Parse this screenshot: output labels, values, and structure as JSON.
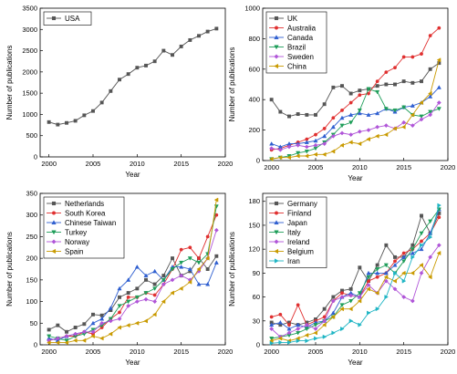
{
  "chart_data": [
    {
      "type": "line",
      "xlabel": "Year",
      "ylabel": "Number of publications",
      "xlim": [
        1999,
        2020
      ],
      "ylim": [
        0,
        3500
      ],
      "xticks": [
        2000,
        2005,
        2010,
        2015,
        2020
      ],
      "yticks": [
        0,
        500,
        1000,
        1500,
        2000,
        2500,
        3000,
        3500
      ],
      "legend_position": "top-left",
      "x": [
        2000,
        2001,
        2002,
        2003,
        2004,
        2005,
        2006,
        2007,
        2008,
        2009,
        2010,
        2011,
        2012,
        2013,
        2014,
        2015,
        2016,
        2017,
        2018,
        2019
      ],
      "series": [
        {
          "name": "USA",
          "color": "#555555",
          "marker": "square",
          "values": [
            820,
            760,
            800,
            850,
            980,
            1080,
            1280,
            1550,
            1820,
            1950,
            2100,
            2150,
            2250,
            2500,
            2400,
            2600,
            2750,
            2850,
            2950,
            3020
          ]
        }
      ]
    },
    {
      "type": "line",
      "xlabel": "Year",
      "ylabel": "Number of publications",
      "xlim": [
        1999,
        2020
      ],
      "ylim": [
        0,
        1000
      ],
      "xticks": [
        2000,
        2005,
        2010,
        2015,
        2020
      ],
      "yticks": [
        0,
        200,
        400,
        600,
        800,
        1000
      ],
      "legend_position": "top-left",
      "x": [
        2000,
        2001,
        2002,
        2003,
        2004,
        2005,
        2006,
        2007,
        2008,
        2009,
        2010,
        2011,
        2012,
        2013,
        2014,
        2015,
        2016,
        2017,
        2018,
        2019
      ],
      "series": [
        {
          "name": "UK",
          "color": "#555555",
          "marker": "square",
          "values": [
            400,
            320,
            290,
            305,
            300,
            300,
            370,
            480,
            490,
            440,
            460,
            470,
            490,
            500,
            500,
            520,
            510,
            520,
            600,
            640
          ]
        },
        {
          "name": "Australia",
          "color": "#e03030",
          "marker": "circle",
          "values": [
            70,
            80,
            100,
            120,
            140,
            170,
            210,
            280,
            330,
            380,
            430,
            440,
            520,
            580,
            610,
            680,
            680,
            700,
            820,
            870
          ]
        },
        {
          "name": "Canada",
          "color": "#2f5fd0",
          "marker": "triangle-up",
          "values": [
            110,
            90,
            110,
            110,
            120,
            130,
            160,
            220,
            280,
            300,
            310,
            300,
            310,
            340,
            320,
            350,
            360,
            380,
            420,
            480
          ]
        },
        {
          "name": "Brazil",
          "color": "#1f9e5a",
          "marker": "triangle-down",
          "values": [
            10,
            20,
            30,
            50,
            60,
            80,
            120,
            170,
            230,
            250,
            330,
            470,
            450,
            340,
            330,
            350,
            300,
            290,
            320,
            340
          ]
        },
        {
          "name": "Sweden",
          "color": "#b055d8",
          "marker": "diamond",
          "values": [
            80,
            70,
            90,
            100,
            90,
            100,
            110,
            160,
            180,
            170,
            190,
            200,
            220,
            230,
            210,
            250,
            230,
            270,
            300,
            380
          ]
        },
        {
          "name": "China",
          "color": "#c99a00",
          "marker": "triangle-left",
          "values": [
            10,
            20,
            20,
            30,
            30,
            40,
            40,
            60,
            100,
            120,
            110,
            140,
            160,
            170,
            210,
            220,
            300,
            380,
            440,
            660
          ]
        }
      ]
    },
    {
      "type": "line",
      "xlabel": "Year",
      "ylabel": "Number of publications",
      "xlim": [
        1999,
        2020
      ],
      "ylim": [
        0,
        350
      ],
      "xticks": [
        2000,
        2005,
        2010,
        2015,
        2020
      ],
      "yticks": [
        0,
        50,
        100,
        150,
        200,
        250,
        300,
        350
      ],
      "legend_position": "top-left",
      "x": [
        2000,
        2001,
        2002,
        2003,
        2004,
        2005,
        2006,
        2007,
        2008,
        2009,
        2010,
        2011,
        2012,
        2013,
        2014,
        2015,
        2016,
        2017,
        2018,
        2019
      ],
      "series": [
        {
          "name": "Netherlands",
          "color": "#555555",
          "marker": "square",
          "values": [
            35,
            45,
            30,
            40,
            48,
            70,
            68,
            80,
            110,
            120,
            130,
            150,
            140,
            160,
            200,
            160,
            170,
            200,
            175,
            205
          ]
        },
        {
          "name": "South Korea",
          "color": "#e03030",
          "marker": "circle",
          "values": [
            10,
            15,
            20,
            20,
            30,
            25,
            40,
            60,
            75,
            110,
            110,
            120,
            115,
            140,
            175,
            220,
            225,
            200,
            250,
            300
          ]
        },
        {
          "name": "Chinese Taiwan",
          "color": "#2f5fd0",
          "marker": "triangle-up",
          "values": [
            15,
            10,
            20,
            25,
            30,
            50,
            60,
            85,
            130,
            150,
            180,
            160,
            170,
            150,
            180,
            180,
            175,
            140,
            140,
            190
          ]
        },
        {
          "name": "Turkey",
          "color": "#1f9e5a",
          "marker": "triangle-down",
          "values": [
            20,
            15,
            10,
            20,
            25,
            35,
            45,
            60,
            90,
            100,
            110,
            120,
            130,
            150,
            175,
            190,
            200,
            190,
            210,
            320
          ]
        },
        {
          "name": "Norway",
          "color": "#b055d8",
          "marker": "diamond",
          "values": [
            10,
            15,
            20,
            25,
            30,
            30,
            50,
            55,
            60,
            90,
            100,
            105,
            100,
            140,
            150,
            160,
            150,
            170,
            200,
            265
          ]
        },
        {
          "name": "Spain",
          "color": "#c99a00",
          "marker": "triangle-left",
          "values": [
            5,
            5,
            5,
            10,
            10,
            20,
            15,
            25,
            40,
            45,
            50,
            55,
            70,
            100,
            120,
            130,
            145,
            175,
            200,
            335
          ]
        }
      ]
    },
    {
      "type": "line",
      "xlabel": "Year",
      "ylabel": "Number of publications",
      "xlim": [
        1999,
        2020
      ],
      "ylim": [
        0,
        190
      ],
      "xticks": [
        2000,
        2005,
        2010,
        2015,
        2020
      ],
      "yticks": [
        0,
        30,
        60,
        90,
        120,
        150,
        180
      ],
      "legend_position": "top-left",
      "x": [
        2000,
        2001,
        2002,
        2003,
        2004,
        2005,
        2006,
        2007,
        2008,
        2009,
        2010,
        2011,
        2012,
        2013,
        2014,
        2015,
        2016,
        2017,
        2018,
        2019
      ],
      "series": [
        {
          "name": "Germany",
          "color": "#555555",
          "marker": "square",
          "values": [
            28,
            25,
            28,
            25,
            28,
            32,
            45,
            60,
            68,
            70,
            97,
            80,
            100,
            125,
            110,
            110,
            125,
            162,
            140,
            165
          ]
        },
        {
          "name": "Finland",
          "color": "#e03030",
          "marker": "circle",
          "values": [
            35,
            38,
            25,
            50,
            25,
            30,
            35,
            55,
            65,
            62,
            60,
            80,
            85,
            90,
            105,
            115,
            120,
            130,
            140,
            160
          ]
        },
        {
          "name": "Japan",
          "color": "#2f5fd0",
          "marker": "triangle-up",
          "values": [
            25,
            28,
            20,
            25,
            22,
            28,
            30,
            40,
            60,
            65,
            60,
            90,
            90,
            90,
            100,
            110,
            115,
            120,
            140,
            170
          ]
        },
        {
          "name": "Italy",
          "color": "#1f9e5a",
          "marker": "triangle-down",
          "values": [
            8,
            10,
            12,
            15,
            20,
            25,
            30,
            35,
            50,
            55,
            65,
            85,
            95,
            100,
            90,
            105,
            120,
            140,
            155,
            170
          ]
        },
        {
          "name": "Ireland",
          "color": "#b055d8",
          "marker": "diamond",
          "values": [
            20,
            10,
            15,
            20,
            25,
            20,
            30,
            55,
            60,
            62,
            60,
            75,
            65,
            80,
            70,
            60,
            55,
            90,
            110,
            125
          ]
        },
        {
          "name": "Belgium",
          "color": "#c99a00",
          "marker": "triangle-left",
          "values": [
            5,
            8,
            5,
            8,
            12,
            15,
            25,
            35,
            45,
            45,
            55,
            70,
            65,
            85,
            80,
            90,
            90,
            100,
            85,
            115
          ]
        },
        {
          "name": "Iran",
          "color": "#1fb5c4",
          "marker": "triangle-right",
          "values": [
            2,
            3,
            3,
            5,
            5,
            8,
            10,
            15,
            20,
            30,
            25,
            40,
            45,
            60,
            90,
            80,
            110,
            125,
            135,
            175
          ]
        }
      ]
    }
  ]
}
